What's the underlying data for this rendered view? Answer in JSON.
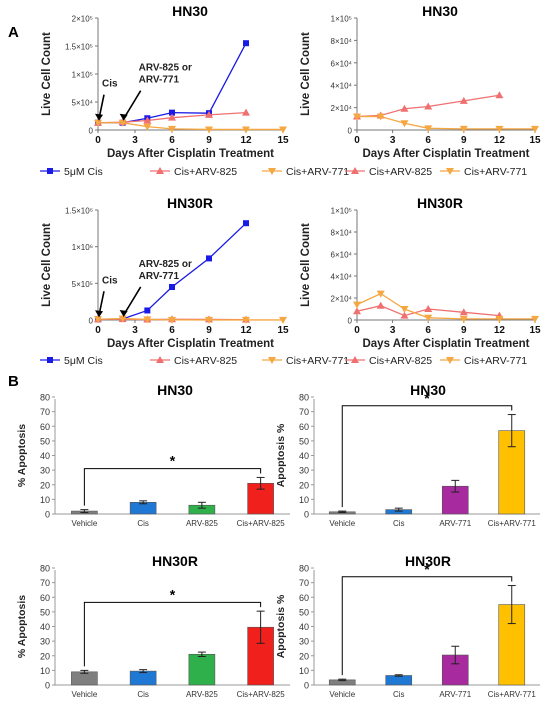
{
  "panel_labels": [
    "A",
    "B"
  ],
  "chart_data": [
    {
      "id": "a1",
      "type": "line",
      "title": "HN30",
      "xlabel": "Days After Cisplatin Treatment",
      "ylabel": "Live Cell Count",
      "xlim": [
        0,
        15
      ],
      "xticks": [
        0,
        3,
        6,
        9,
        12,
        15
      ],
      "ylim": [
        0,
        200000
      ],
      "yticks": [
        0,
        50000,
        100000,
        150000,
        200000
      ],
      "ytick_labels": [
        "0",
        "5×10⁴",
        "1×10⁵",
        "1.5×10⁵",
        "2×10⁵"
      ],
      "series": [
        {
          "name": "5μM Cis",
          "color": "#1a1ae6",
          "marker": "square",
          "x": [
            0,
            2,
            4,
            6,
            9,
            12
          ],
          "y": [
            13000,
            13000,
            21000,
            31000,
            30000,
            155000
          ]
        },
        {
          "name": "Cis+ARV-825",
          "color": "#f07070",
          "marker": "triangle",
          "x": [
            0,
            2,
            4,
            6,
            9,
            12
          ],
          "y": [
            13000,
            14000,
            17000,
            22000,
            27000,
            31000
          ]
        },
        {
          "name": "Cis+ARV-771",
          "color": "#f5a742",
          "marker": "tri-down",
          "x": [
            0,
            2,
            4,
            6,
            9,
            12,
            15
          ],
          "y": [
            13000,
            13000,
            6000,
            2000,
            1000,
            1000,
            1000
          ]
        }
      ],
      "annotations": [
        {
          "text": "Cis",
          "x": 0,
          "y": 13000
        },
        {
          "text": [
            "ARV-825 or",
            "ARV-771"
          ],
          "x": 2,
          "y": 13000
        }
      ],
      "legend": [
        "5μM Cis",
        "Cis+ARV-825",
        "Cis+ARV-771"
      ]
    },
    {
      "id": "a2",
      "type": "line",
      "title": "HN30",
      "xlabel": "Days After Cisplatin Treatment",
      "ylabel": "Live Cell Count",
      "xlim": [
        0,
        15
      ],
      "xticks": [
        0,
        3,
        6,
        9,
        12,
        15
      ],
      "ylim": [
        0,
        100000
      ],
      "yticks": [
        0,
        20000,
        40000,
        60000,
        80000,
        100000
      ],
      "ytick_labels": [
        "0",
        "2×10⁴",
        "4×10⁴",
        "6×10⁴",
        "8×10⁴",
        "1×10⁵"
      ],
      "series": [
        {
          "name": "Cis+ARV-825",
          "color": "#f07070",
          "marker": "triangle",
          "x": [
            0,
            2,
            4,
            6,
            9,
            12
          ],
          "y": [
            12000,
            13000,
            19000,
            21000,
            26000,
            31000
          ]
        },
        {
          "name": "Cis+ARV-771",
          "color": "#f5a742",
          "marker": "tri-down",
          "x": [
            0,
            2,
            4,
            6,
            9,
            12,
            15
          ],
          "y": [
            12000,
            12000,
            6000,
            1500,
            1000,
            1000,
            1000
          ]
        }
      ],
      "legend": [
        "Cis+ARV-825",
        "Cis+ARV-771"
      ]
    },
    {
      "id": "a3",
      "type": "line",
      "title": "HN30R",
      "xlabel": "Days After Cisplatin Treatment",
      "ylabel": "Live Cell Count",
      "xlim": [
        0,
        15
      ],
      "xticks": [
        0,
        3,
        6,
        9,
        12,
        15
      ],
      "ylim": [
        0,
        1500000
      ],
      "yticks": [
        0,
        500000,
        1000000,
        1500000
      ],
      "ytick_labels": [
        "0",
        "5×10⁵",
        "1×10⁶",
        "1.5×10⁶"
      ],
      "series": [
        {
          "name": "5μM Cis",
          "color": "#1a1ae6",
          "marker": "square",
          "x": [
            0,
            2,
            4,
            6,
            9,
            12
          ],
          "y": [
            10000,
            14000,
            130000,
            450000,
            840000,
            1320000
          ]
        },
        {
          "name": "Cis+ARV-825",
          "color": "#f07070",
          "marker": "triangle",
          "x": [
            0,
            2,
            4,
            6,
            9,
            12
          ],
          "y": [
            10000,
            12000,
            6000,
            10000,
            8000,
            5000
          ]
        },
        {
          "name": "Cis+ARV-771",
          "color": "#f5a742",
          "marker": "tri-down",
          "x": [
            0,
            2,
            4,
            6,
            9,
            12,
            15
          ],
          "y": [
            10000,
            20000,
            8000,
            2000,
            1000,
            1000,
            1000
          ]
        }
      ],
      "annotations": [
        {
          "text": "Cis",
          "x": 0,
          "y": 10000
        },
        {
          "text": [
            "ARV-825 or",
            "ARV-771"
          ],
          "x": 2,
          "y": 14000
        }
      ],
      "legend": [
        "5μM Cis",
        "Cis+ARV-825",
        "Cis+ARV-771"
      ]
    },
    {
      "id": "a4",
      "type": "line",
      "title": "HN30R",
      "xlabel": "Days After Cisplatin Treatment",
      "ylabel": "Live Cell Count",
      "xlim": [
        0,
        15
      ],
      "xticks": [
        0,
        3,
        6,
        9,
        12,
        15
      ],
      "ylim": [
        0,
        100000
      ],
      "yticks": [
        0,
        20000,
        40000,
        60000,
        80000,
        100000
      ],
      "ytick_labels": [
        "0",
        "2×10⁴",
        "4×10⁴",
        "6×10⁴",
        "8×10⁴",
        "1×10⁵"
      ],
      "series": [
        {
          "name": "Cis+ARV-825",
          "color": "#f07070",
          "marker": "triangle",
          "x": [
            0,
            2,
            4,
            6,
            9,
            12
          ],
          "y": [
            8000,
            13000,
            4000,
            10000,
            7000,
            4000
          ]
        },
        {
          "name": "Cis+ARV-771",
          "color": "#f5a742",
          "marker": "tri-down",
          "x": [
            0,
            2,
            4,
            6,
            9,
            12,
            15
          ],
          "y": [
            14000,
            24000,
            10000,
            2000,
            1000,
            1000,
            1000
          ]
        }
      ],
      "legend": [
        "Cis+ARV-825",
        "Cis+ARV-771"
      ]
    },
    {
      "id": "b1",
      "type": "bar",
      "title": "HN30",
      "ylabel": "% Apoptosis",
      "ylim": [
        0,
        80
      ],
      "yticks": [
        0,
        10,
        20,
        30,
        40,
        50,
        60,
        70,
        80
      ],
      "categories": [
        "Vehicle",
        "Cis",
        "ARV-825",
        "Cis+ARV-825"
      ],
      "values": [
        2,
        8,
        6,
        21
      ],
      "errors": [
        1,
        1,
        2,
        4
      ],
      "colors": [
        "#7f7f7f",
        "#1f78d4",
        "#2fb04a",
        "#f0201c"
      ],
      "significance": {
        "from": 0,
        "to": 3,
        "label": "*"
      }
    },
    {
      "id": "b2",
      "type": "bar",
      "title": "HN30",
      "ylabel": "Apoptosis %",
      "ylim": [
        0,
        80
      ],
      "yticks": [
        0,
        10,
        20,
        30,
        40,
        50,
        60,
        70,
        80
      ],
      "categories": [
        "Vehicle",
        "Cis",
        "ARV-771",
        "Cis+ARV-771"
      ],
      "values": [
        1.5,
        3,
        19,
        57
      ],
      "errors": [
        0.5,
        1,
        4,
        11
      ],
      "colors": [
        "#7f7f7f",
        "#1f78d4",
        "#a72a9e",
        "#ffc000"
      ],
      "significance": {
        "from": 0,
        "to": 3,
        "label": "*"
      }
    },
    {
      "id": "b3",
      "type": "bar",
      "title": "HN30R",
      "ylabel": "% Apoptosis",
      "ylim": [
        0,
        80
      ],
      "yticks": [
        0,
        10,
        20,
        30,
        40,
        50,
        60,
        70,
        80
      ],
      "categories": [
        "Vehicle",
        "Cis",
        "ARV-825",
        "Cis+ARV-825"
      ],
      "values": [
        9,
        9.5,
        21,
        39.5
      ],
      "errors": [
        1,
        1,
        1.5,
        11
      ],
      "colors": [
        "#7f7f7f",
        "#1f78d4",
        "#2fb04a",
        "#f0201c"
      ],
      "significance": {
        "from": 0,
        "to": 3,
        "label": "*"
      }
    },
    {
      "id": "b4",
      "type": "bar",
      "title": "HN30R",
      "ylabel": "Apoptosis %",
      "ylim": [
        0,
        80
      ],
      "yticks": [
        0,
        10,
        20,
        30,
        40,
        50,
        60,
        70,
        80
      ],
      "categories": [
        "Vehicle",
        "Cis",
        "ARV-771",
        "Cis+ARV-771"
      ],
      "values": [
        3.5,
        6.5,
        20.5,
        55
      ],
      "errors": [
        0.5,
        0.5,
        6,
        13
      ],
      "colors": [
        "#7f7f7f",
        "#1f78d4",
        "#a72a9e",
        "#ffc000"
      ],
      "significance": {
        "from": 0,
        "to": 3,
        "label": "*"
      }
    }
  ]
}
